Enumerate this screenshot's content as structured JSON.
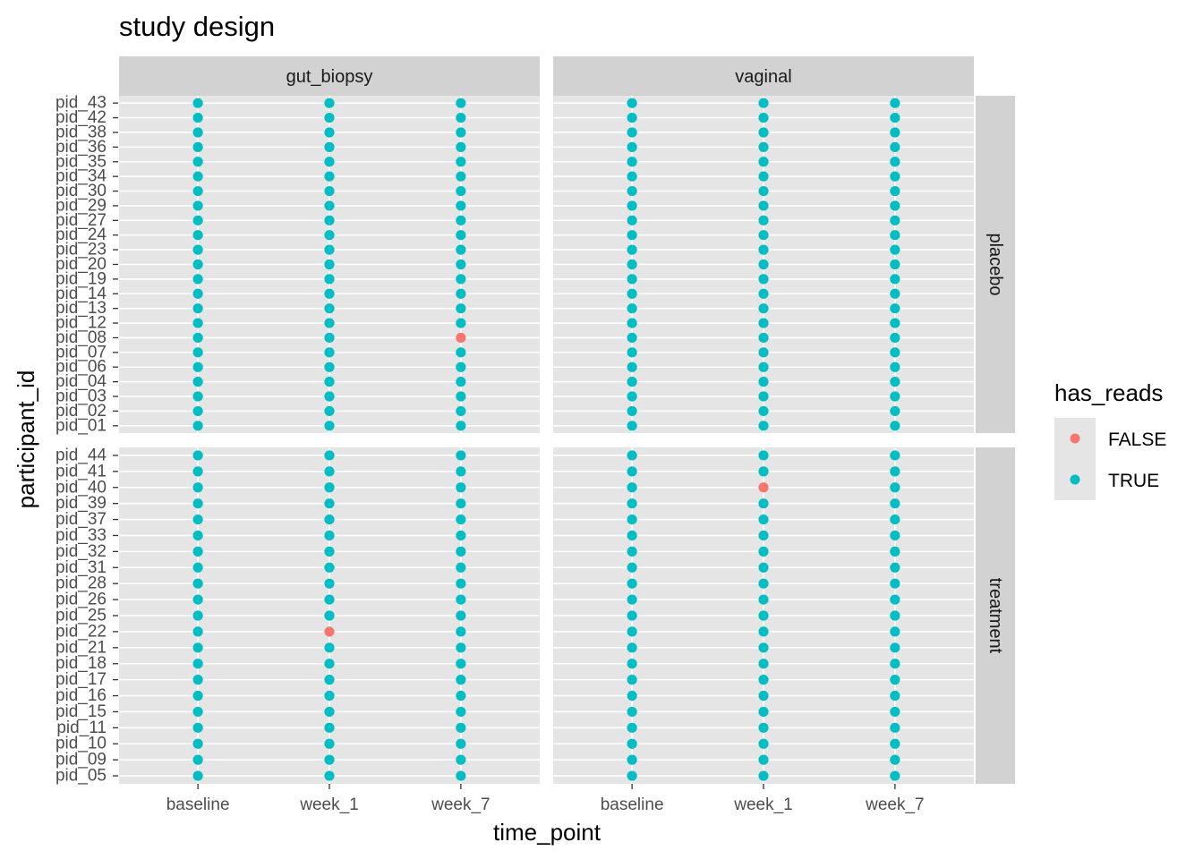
{
  "chart_data": {
    "type": "scatter",
    "title": "study design",
    "xlabel": "time_point",
    "ylabel": "participant_id",
    "x_categories": [
      "baseline",
      "week_1",
      "week_7"
    ],
    "facet_columns": [
      "gut_biopsy",
      "vaginal"
    ],
    "facet_rows": [
      {
        "name": "placebo",
        "participants": [
          "pid_01",
          "pid_02",
          "pid_03",
          "pid_04",
          "pid_06",
          "pid_07",
          "pid_08",
          "pid_12",
          "pid_13",
          "pid_14",
          "pid_19",
          "pid_20",
          "pid_23",
          "pid_24",
          "pid_27",
          "pid_29",
          "pid_30",
          "pid_34",
          "pid_35",
          "pid_36",
          "pid_38",
          "pid_42",
          "pid_43"
        ]
      },
      {
        "name": "treatment",
        "participants": [
          "pid_05",
          "pid_09",
          "pid_10",
          "pid_11",
          "pid_15",
          "pid_16",
          "pid_17",
          "pid_18",
          "pid_21",
          "pid_22",
          "pid_25",
          "pid_26",
          "pid_28",
          "pid_31",
          "pid_32",
          "pid_33",
          "pid_37",
          "pid_39",
          "pid_40",
          "pid_41",
          "pid_44"
        ]
      }
    ],
    "default_has_reads": true,
    "false_points": [
      {
        "column": "gut_biopsy",
        "row": "placebo",
        "participant": "pid_08",
        "time_point": "week_7",
        "has_reads": false
      },
      {
        "column": "gut_biopsy",
        "row": "treatment",
        "participant": "pid_22",
        "time_point": "week_1",
        "has_reads": false
      },
      {
        "column": "vaginal",
        "row": "treatment",
        "participant": "pid_40",
        "time_point": "week_1",
        "has_reads": false
      }
    ],
    "legend": {
      "title": "has_reads",
      "position": "right",
      "entries": [
        {
          "label": "FALSE",
          "color": "#F8766D"
        },
        {
          "label": "TRUE",
          "color": "#00BFC4"
        }
      ]
    },
    "grid": true,
    "colors": {
      "false": "#F8766D",
      "true": "#00BFC4"
    }
  }
}
